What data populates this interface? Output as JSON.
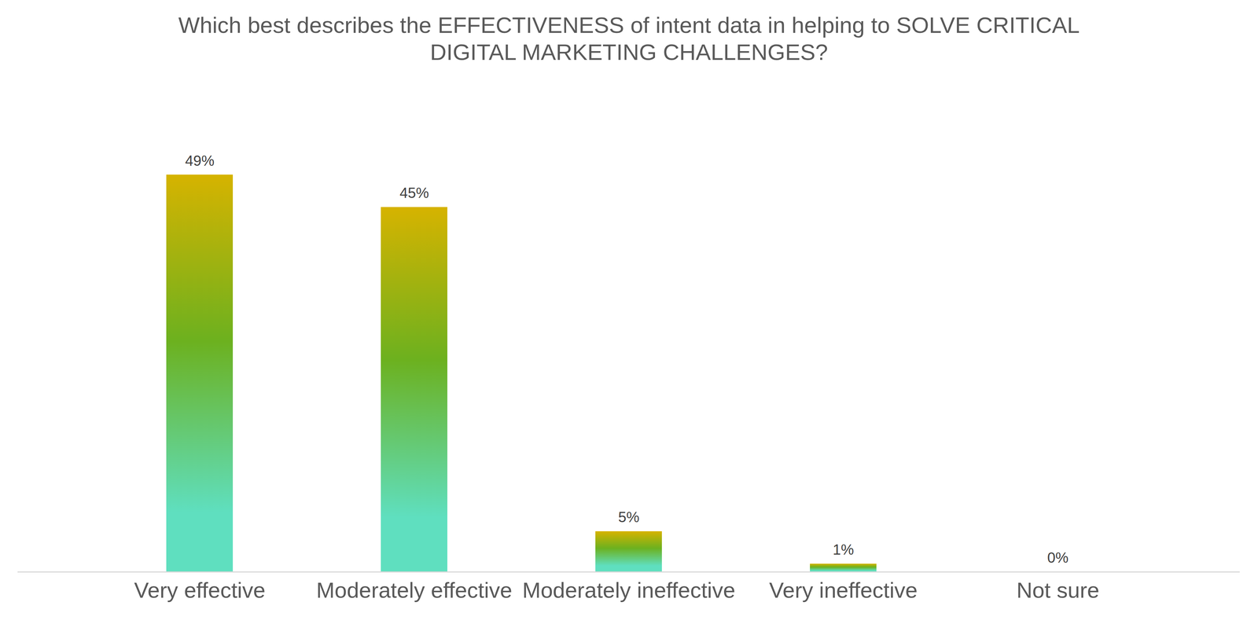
{
  "chart_data": {
    "type": "bar",
    "title": "Which best describes the EFFECTIVENESS of intent data in helping to SOLVE CRITICAL\nDIGITAL MARKETING CHALLENGES?",
    "categories": [
      "Very effective",
      "Moderately effective",
      "Moderately ineffective",
      "Very ineffective",
      "Not sure"
    ],
    "values": [
      49,
      45,
      5,
      1,
      0
    ],
    "value_labels": [
      "49%",
      "45%",
      "5%",
      "1%",
      "0%"
    ],
    "data_labels": true,
    "tick_labels": "x",
    "ylim": [
      0,
      60
    ]
  }
}
